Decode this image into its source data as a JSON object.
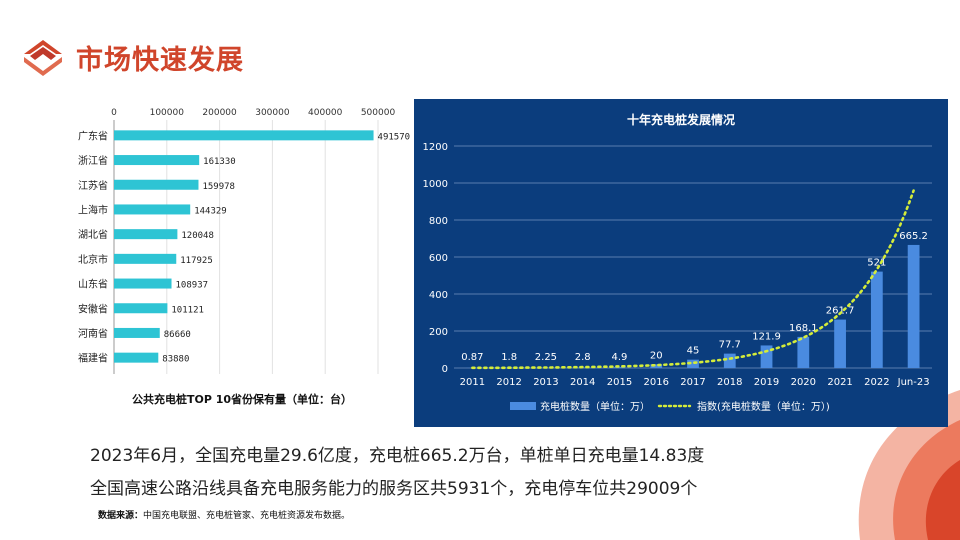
{
  "page": {
    "title": "市场快速发展",
    "line1": "2023年6月，全国充电量29.6亿度，充电桩665.2万台，单桩单日充电量14.83度",
    "line2": "全国高速公路沿线具备充电服务能力的服务区共5931个，充电停车位共29009个",
    "source_label": "数据来源：",
    "source_text": "中国充电联盟、充电桩管家、充电桩资源发布数据。",
    "colors": {
      "title": "#d0452b",
      "bar_left": "#2ec4d4",
      "panel_bg": "#0b3d7d",
      "bar_right": "#4a8be0",
      "trend": "#d4ec3a"
    },
    "icons": [
      "logo-icon",
      "corner-decoration"
    ]
  },
  "chart_data": [
    {
      "type": "bar",
      "orientation": "horizontal",
      "title": "公共充电桩TOP 10省份保有量（单位：台）",
      "categories": [
        "广东省",
        "浙江省",
        "江苏省",
        "上海市",
        "湖北省",
        "北京市",
        "山东省",
        "安徽省",
        "河南省",
        "福建省"
      ],
      "values": [
        491570,
        161330,
        159978,
        144329,
        120048,
        117925,
        108937,
        101121,
        86660,
        83880
      ],
      "xlim": [
        0,
        500000
      ],
      "xticks": [
        "0",
        "100000",
        "200000",
        "300000",
        "400000",
        "500000"
      ],
      "axis_position": "top",
      "grid": true
    },
    {
      "type": "bar",
      "title": "十年充电桩发展情况",
      "categories": [
        "2011",
        "2012",
        "2013",
        "2014",
        "2015",
        "2016",
        "2017",
        "2018",
        "2019",
        "2020",
        "2021",
        "2022",
        "Jun-23"
      ],
      "series": [
        {
          "name": "充电桩数量（单位：万）",
          "type": "bar",
          "values": [
            0.87,
            1.8,
            2.25,
            2.8,
            4.9,
            20,
            45,
            77.7,
            121.9,
            168.1,
            261.7,
            521,
            665.2
          ],
          "labels": [
            "0.87",
            "1.8",
            "2.25",
            "2.8",
            "4.9",
            "20",
            "45",
            "77.7",
            "121.9",
            "168.1",
            "261.7",
            "521",
            "665.2"
          ]
        },
        {
          "name": "指数(充电桩数量（单位：万）)",
          "type": "line",
          "style": "dotted"
        }
      ],
      "ylim": [
        0,
        1200
      ],
      "yticks": [
        "0",
        "200",
        "400",
        "600",
        "800",
        "1000",
        "1200"
      ],
      "grid": true,
      "legend": "bottom"
    }
  ]
}
